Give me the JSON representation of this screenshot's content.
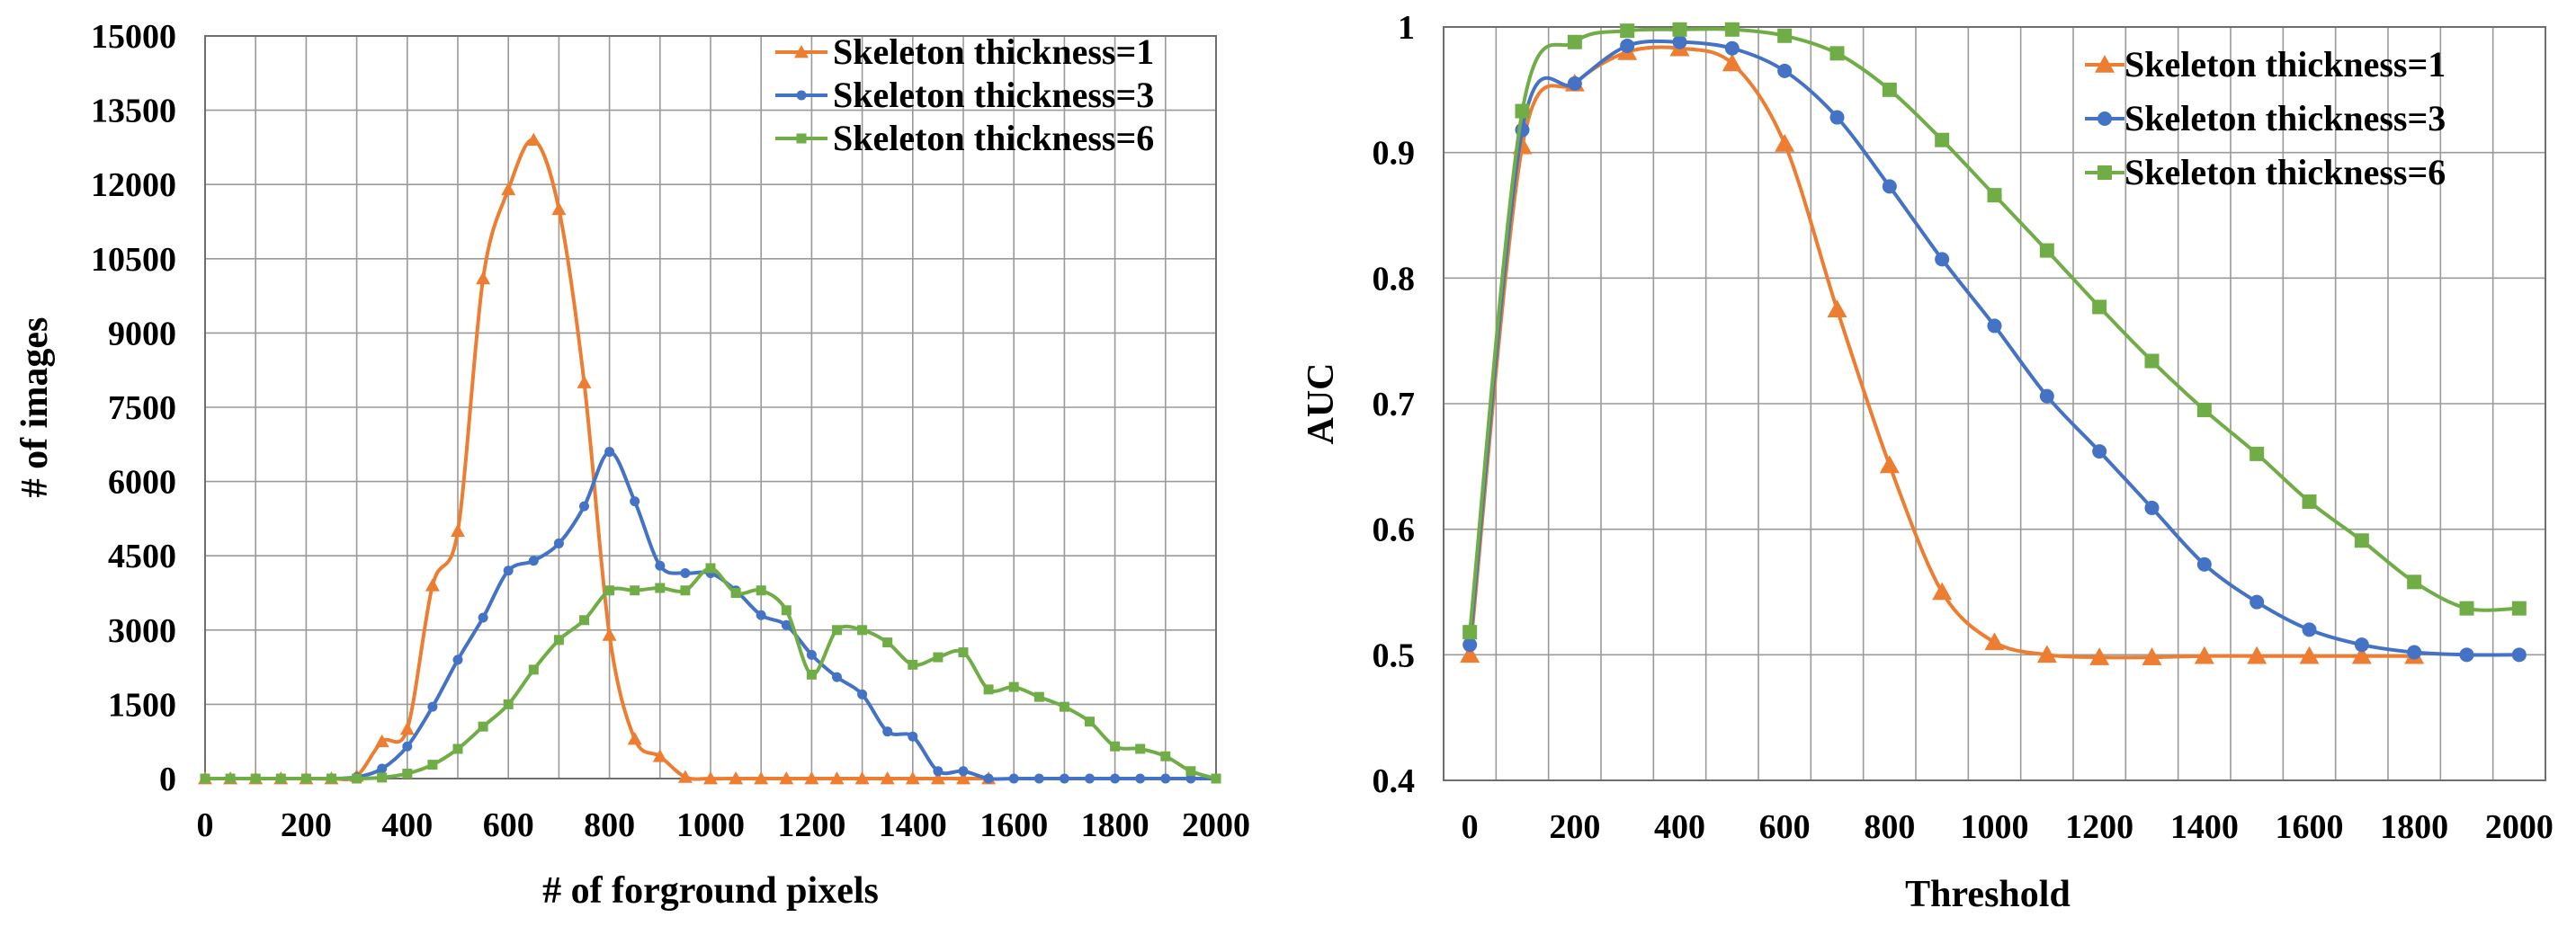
{
  "chart_data": [
    {
      "type": "line",
      "title": "",
      "xlabel": "# of forground pixels",
      "ylabel": "# of images",
      "xlim": [
        0,
        2000
      ],
      "ylim": [
        0,
        15000
      ],
      "xticks": [
        0,
        200,
        400,
        600,
        800,
        1000,
        1200,
        1400,
        1600,
        1800,
        2000
      ],
      "yticks": [
        0,
        1500,
        3000,
        4500,
        6000,
        7500,
        9000,
        10500,
        12000,
        13500,
        15000
      ],
      "xtick_labels": [
        "0",
        "200",
        "400",
        "600",
        "800",
        "1000",
        "1200",
        "1400",
        "1600",
        "1800",
        "2000"
      ],
      "ytick_labels": [
        "0",
        "1500",
        "3000",
        "4500",
        "6000",
        "7500",
        "9000",
        "10500",
        "12000",
        "13500",
        "15000"
      ],
      "grid": true,
      "legend_position": "top-right",
      "series": [
        {
          "name": "Skeleton thickness=1",
          "color": "#ED7D31",
          "marker": "triangle",
          "points": [
            [
              0,
              0
            ],
            [
              50,
              0
            ],
            [
              100,
              0
            ],
            [
              150,
              0
            ],
            [
              200,
              0
            ],
            [
              250,
              0
            ],
            [
              300,
              50
            ],
            [
              350,
              750
            ],
            [
              400,
              1000
            ],
            [
              450,
              3900
            ],
            [
              500,
              5000
            ],
            [
              550,
              10100
            ],
            [
              600,
              11900
            ],
            [
              650,
              12900
            ],
            [
              700,
              11500
            ],
            [
              750,
              8000
            ],
            [
              800,
              2900
            ],
            [
              850,
              800
            ],
            [
              900,
              450
            ],
            [
              950,
              30
            ],
            [
              1000,
              0
            ],
            [
              1050,
              0
            ],
            [
              1100,
              0
            ],
            [
              1150,
              0
            ],
            [
              1200,
              0
            ],
            [
              1250,
              0
            ],
            [
              1300,
              0
            ],
            [
              1350,
              0
            ],
            [
              1400,
              0
            ],
            [
              1450,
              0
            ],
            [
              1500,
              0
            ],
            [
              1550,
              0
            ]
          ]
        },
        {
          "name": "Skeleton thickness=3",
          "color": "#4472C4",
          "marker": "circle",
          "points": [
            [
              0,
              0
            ],
            [
              50,
              0
            ],
            [
              100,
              0
            ],
            [
              150,
              0
            ],
            [
              200,
              0
            ],
            [
              250,
              0
            ],
            [
              300,
              30
            ],
            [
              350,
              200
            ],
            [
              400,
              650
            ],
            [
              450,
              1450
            ],
            [
              500,
              2400
            ],
            [
              550,
              3250
            ],
            [
              600,
              4200
            ],
            [
              650,
              4400
            ],
            [
              700,
              4750
            ],
            [
              750,
              5500
            ],
            [
              800,
              6600
            ],
            [
              850,
              5600
            ],
            [
              900,
              4300
            ],
            [
              950,
              4150
            ],
            [
              1000,
              4150
            ],
            [
              1050,
              3800
            ],
            [
              1100,
              3300
            ],
            [
              1150,
              3100
            ],
            [
              1200,
              2500
            ],
            [
              1250,
              2050
            ],
            [
              1300,
              1700
            ],
            [
              1350,
              950
            ],
            [
              1400,
              850
            ],
            [
              1450,
              150
            ],
            [
              1500,
              150
            ],
            [
              1550,
              0
            ],
            [
              1600,
              0
            ],
            [
              1650,
              0
            ],
            [
              1700,
              0
            ],
            [
              1750,
              0
            ],
            [
              1800,
              0
            ],
            [
              1850,
              0
            ],
            [
              1900,
              0
            ],
            [
              1950,
              0
            ],
            [
              2000,
              0
            ]
          ]
        },
        {
          "name": "Skeleton thickness=6",
          "color": "#70AD47",
          "marker": "square",
          "points": [
            [
              0,
              0
            ],
            [
              50,
              0
            ],
            [
              100,
              0
            ],
            [
              150,
              0
            ],
            [
              200,
              0
            ],
            [
              250,
              0
            ],
            [
              300,
              0
            ],
            [
              350,
              20
            ],
            [
              400,
              100
            ],
            [
              450,
              280
            ],
            [
              500,
              600
            ],
            [
              550,
              1050
            ],
            [
              600,
              1500
            ],
            [
              650,
              2200
            ],
            [
              700,
              2800
            ],
            [
              750,
              3200
            ],
            [
              800,
              3800
            ],
            [
              850,
              3800
            ],
            [
              900,
              3850
            ],
            [
              950,
              3800
            ],
            [
              1000,
              4250
            ],
            [
              1050,
              3750
            ],
            [
              1100,
              3800
            ],
            [
              1150,
              3400
            ],
            [
              1200,
              2100
            ],
            [
              1250,
              3000
            ],
            [
              1300,
              3000
            ],
            [
              1350,
              2750
            ],
            [
              1400,
              2300
            ],
            [
              1450,
              2450
            ],
            [
              1500,
              2550
            ],
            [
              1550,
              1800
            ],
            [
              1600,
              1850
            ],
            [
              1650,
              1650
            ],
            [
              1700,
              1450
            ],
            [
              1750,
              1150
            ],
            [
              1800,
              650
            ],
            [
              1850,
              600
            ],
            [
              1900,
              450
            ],
            [
              1950,
              150
            ],
            [
              2000,
              0
            ]
          ]
        }
      ]
    },
    {
      "type": "line",
      "title": "",
      "xlabel": "Threshold",
      "ylabel": "AUC",
      "xlim": [
        -50,
        2050
      ],
      "ylim": [
        0.4,
        1.0
      ],
      "xticks": [
        0,
        200,
        400,
        600,
        800,
        1000,
        1200,
        1400,
        1600,
        1800,
        2000
      ],
      "yticks": [
        0.4,
        0.5,
        0.6,
        0.7,
        0.8,
        0.9,
        1.0
      ],
      "xtick_labels": [
        "0",
        "200",
        "400",
        "600",
        "800",
        "1000",
        "1200",
        "1400",
        "1600",
        "1800",
        "2000"
      ],
      "ytick_labels": [
        "0.4",
        "0.5",
        "0.6",
        "0.7",
        "0.8",
        "0.9",
        "1"
      ],
      "grid": true,
      "legend_position": "top-right",
      "series": [
        {
          "name": "Skeleton thickness=1",
          "color": "#ED7D31",
          "marker": "triangle",
          "points": [
            [
              0,
              0.5
            ],
            [
              100,
              0.905
            ],
            [
              200,
              0.955
            ],
            [
              300,
              0.98
            ],
            [
              400,
              0.983
            ],
            [
              500,
              0.971
            ],
            [
              600,
              0.907
            ],
            [
              700,
              0.775
            ],
            [
              800,
              0.651
            ],
            [
              900,
              0.55
            ],
            [
              1000,
              0.51
            ],
            [
              1100,
              0.5
            ],
            [
              1200,
              0.498
            ],
            [
              1300,
              0.498
            ],
            [
              1400,
              0.499
            ],
            [
              1500,
              0.499
            ],
            [
              1600,
              0.499
            ],
            [
              1700,
              0.499
            ],
            [
              1800,
              0.499
            ]
          ]
        },
        {
          "name": "Skeleton thickness=3",
          "color": "#4472C4",
          "marker": "circle",
          "points": [
            [
              0,
              0.508
            ],
            [
              100,
              0.918
            ],
            [
              200,
              0.955
            ],
            [
              300,
              0.985
            ],
            [
              400,
              0.988
            ],
            [
              500,
              0.983
            ],
            [
              600,
              0.965
            ],
            [
              700,
              0.928
            ],
            [
              800,
              0.873
            ],
            [
              900,
              0.815
            ],
            [
              1000,
              0.762
            ],
            [
              1100,
              0.706
            ],
            [
              1200,
              0.662
            ],
            [
              1300,
              0.617
            ],
            [
              1400,
              0.572
            ],
            [
              1500,
              0.542
            ],
            [
              1600,
              0.52
            ],
            [
              1700,
              0.508
            ],
            [
              1800,
              0.502
            ],
            [
              1900,
              0.5
            ],
            [
              2000,
              0.5
            ]
          ]
        },
        {
          "name": "Skeleton thickness=6",
          "color": "#70AD47",
          "marker": "square",
          "points": [
            [
              0,
              0.518
            ],
            [
              100,
              0.933
            ],
            [
              200,
              0.988
            ],
            [
              300,
              0.997
            ],
            [
              400,
              0.998
            ],
            [
              500,
              0.998
            ],
            [
              600,
              0.993
            ],
            [
              700,
              0.979
            ],
            [
              800,
              0.95
            ],
            [
              900,
              0.91
            ],
            [
              1000,
              0.866
            ],
            [
              1100,
              0.822
            ],
            [
              1200,
              0.777
            ],
            [
              1300,
              0.734
            ],
            [
              1400,
              0.695
            ],
            [
              1500,
              0.66
            ],
            [
              1600,
              0.622
            ],
            [
              1700,
              0.591
            ],
            [
              1800,
              0.558
            ],
            [
              1900,
              0.537
            ],
            [
              2000,
              0.537
            ]
          ]
        }
      ]
    }
  ]
}
